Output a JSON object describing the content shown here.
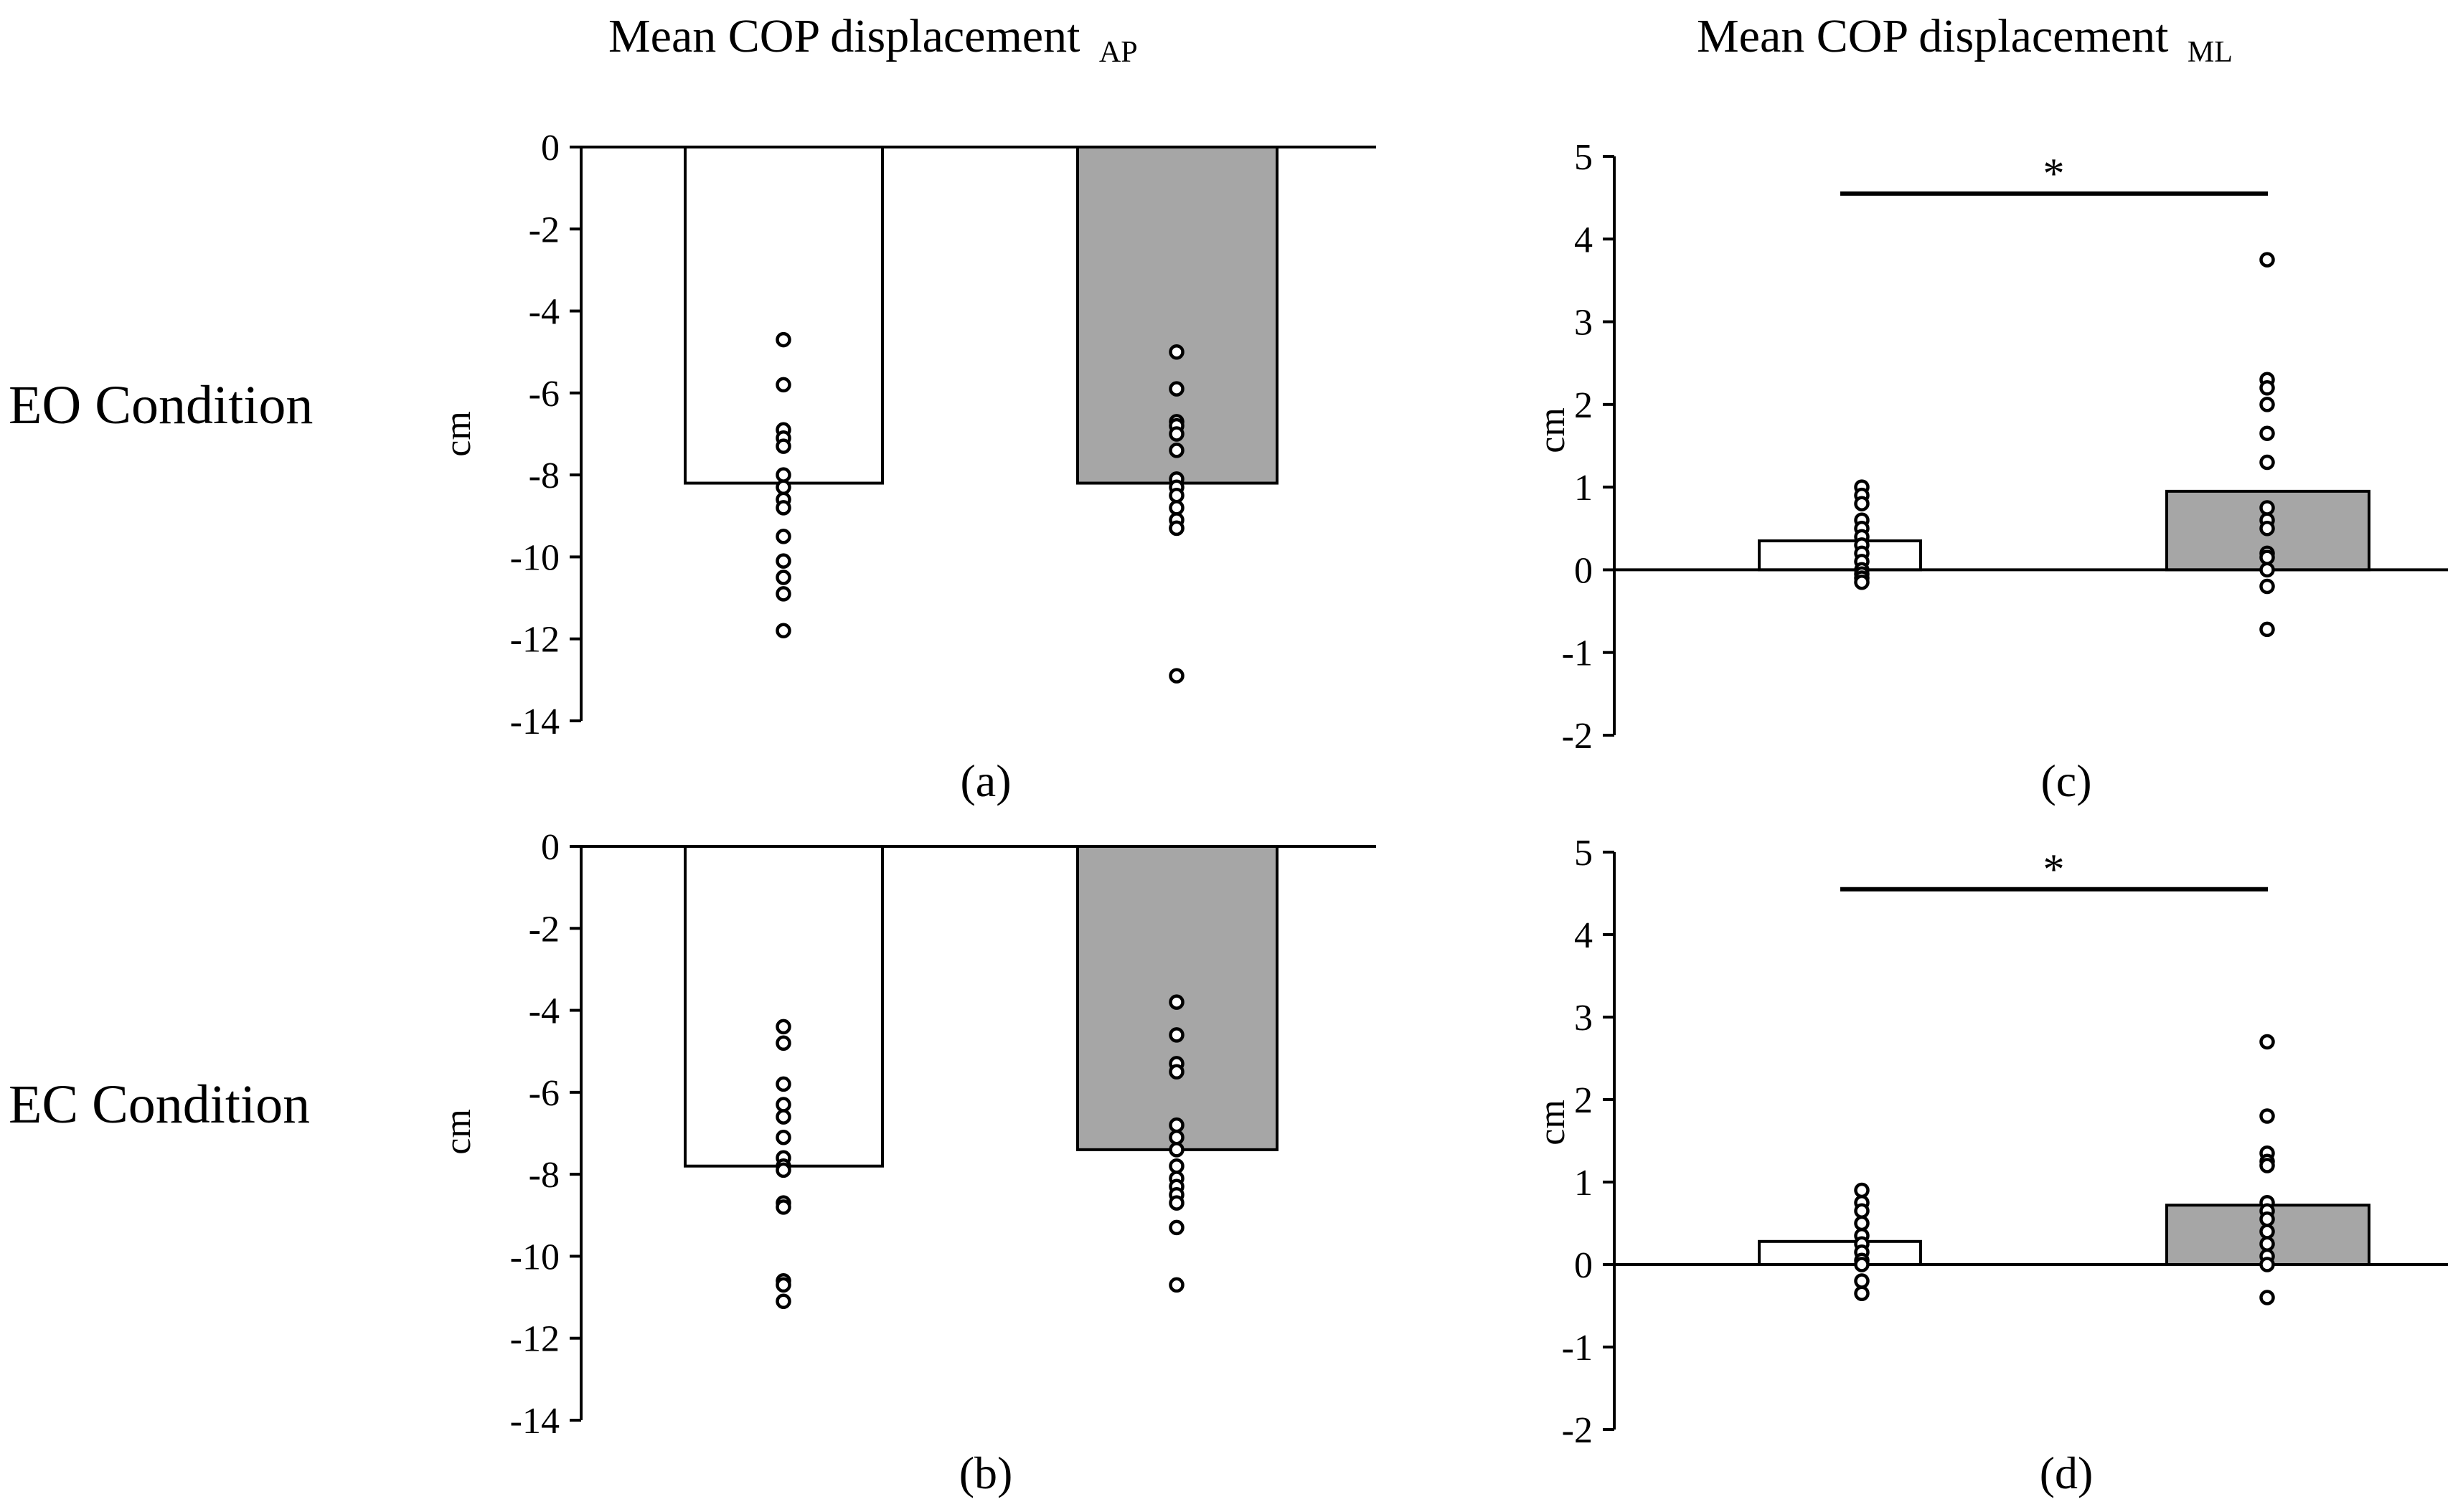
{
  "figure": {
    "column_titles": [
      {
        "main": "Mean COP displacement",
        "sub": "AP"
      },
      {
        "main": "Mean COP displacement",
        "sub": "ML"
      }
    ],
    "row_labels": [
      "EO Condition",
      "EC Condition"
    ]
  },
  "colors": {
    "bar_left": "#ffffff",
    "bar_right": "#a6a6a6",
    "stroke": "#000000"
  },
  "chart_data": [
    {
      "id": "a",
      "type": "bar",
      "panel_label": "(a)",
      "ylabel": "cm",
      "ylim": [
        -14,
        0
      ],
      "yticks": [
        0,
        -2,
        -4,
        -6,
        -8,
        -10,
        -12,
        -14
      ],
      "bars": [
        -8.2,
        -8.2
      ],
      "points": [
        [
          -4.7,
          -5.8,
          -6.9,
          -7.1,
          -7.3,
          -8.0,
          -8.3,
          -8.6,
          -8.8,
          -9.5,
          -10.1,
          -10.5,
          -10.9,
          -11.8
        ],
        [
          -5.0,
          -5.9,
          -6.7,
          -6.8,
          -7.0,
          -7.4,
          -8.1,
          -8.3,
          -8.5,
          -8.8,
          -9.1,
          -9.3,
          -9.3,
          -12.9
        ]
      ],
      "significance": null
    },
    {
      "id": "b",
      "type": "bar",
      "panel_label": "(b)",
      "ylabel": "cm",
      "ylim": [
        -14,
        0
      ],
      "yticks": [
        0,
        -2,
        -4,
        -6,
        -8,
        -10,
        -12,
        -14
      ],
      "bars": [
        -7.8,
        -7.4
      ],
      "points": [
        [
          -4.4,
          -4.8,
          -5.8,
          -6.3,
          -6.6,
          -7.1,
          -7.6,
          -7.8,
          -7.9,
          -8.7,
          -8.8,
          -10.6,
          -10.7,
          -11.1
        ],
        [
          -3.8,
          -4.6,
          -5.3,
          -5.5,
          -6.8,
          -7.1,
          -7.4,
          -7.8,
          -8.1,
          -8.3,
          -8.5,
          -8.7,
          -9.3,
          -10.7
        ]
      ],
      "significance": null
    },
    {
      "id": "c",
      "type": "bar",
      "panel_label": "(c)",
      "ylabel": "cm",
      "ylim": [
        -2,
        5
      ],
      "yticks": [
        5,
        4,
        3,
        2,
        1,
        0,
        -1,
        -2
      ],
      "bars": [
        0.35,
        0.95
      ],
      "points": [
        [
          1.0,
          0.9,
          0.8,
          0.6,
          0.5,
          0.4,
          0.3,
          0.2,
          0.1,
          0.0,
          -0.05,
          -0.1,
          -0.15
        ],
        [
          3.75,
          2.3,
          2.2,
          2.0,
          1.65,
          1.3,
          0.75,
          0.6,
          0.5,
          0.2,
          0.15,
          0.0,
          -0.2,
          -0.72
        ]
      ],
      "significance": "*"
    },
    {
      "id": "d",
      "type": "bar",
      "panel_label": "(d)",
      "ylabel": "cm",
      "ylim": [
        -2,
        5
      ],
      "yticks": [
        5,
        4,
        3,
        2,
        1,
        0,
        -1,
        -2
      ],
      "bars": [
        0.28,
        0.72
      ],
      "points": [
        [
          0.9,
          0.75,
          0.65,
          0.5,
          0.35,
          0.25,
          0.15,
          0.05,
          0.0,
          -0.2,
          -0.35
        ],
        [
          2.7,
          1.8,
          1.35,
          1.25,
          1.2,
          0.75,
          0.65,
          0.55,
          0.4,
          0.25,
          0.1,
          0.0,
          -0.4
        ]
      ],
      "significance": "*"
    }
  ]
}
